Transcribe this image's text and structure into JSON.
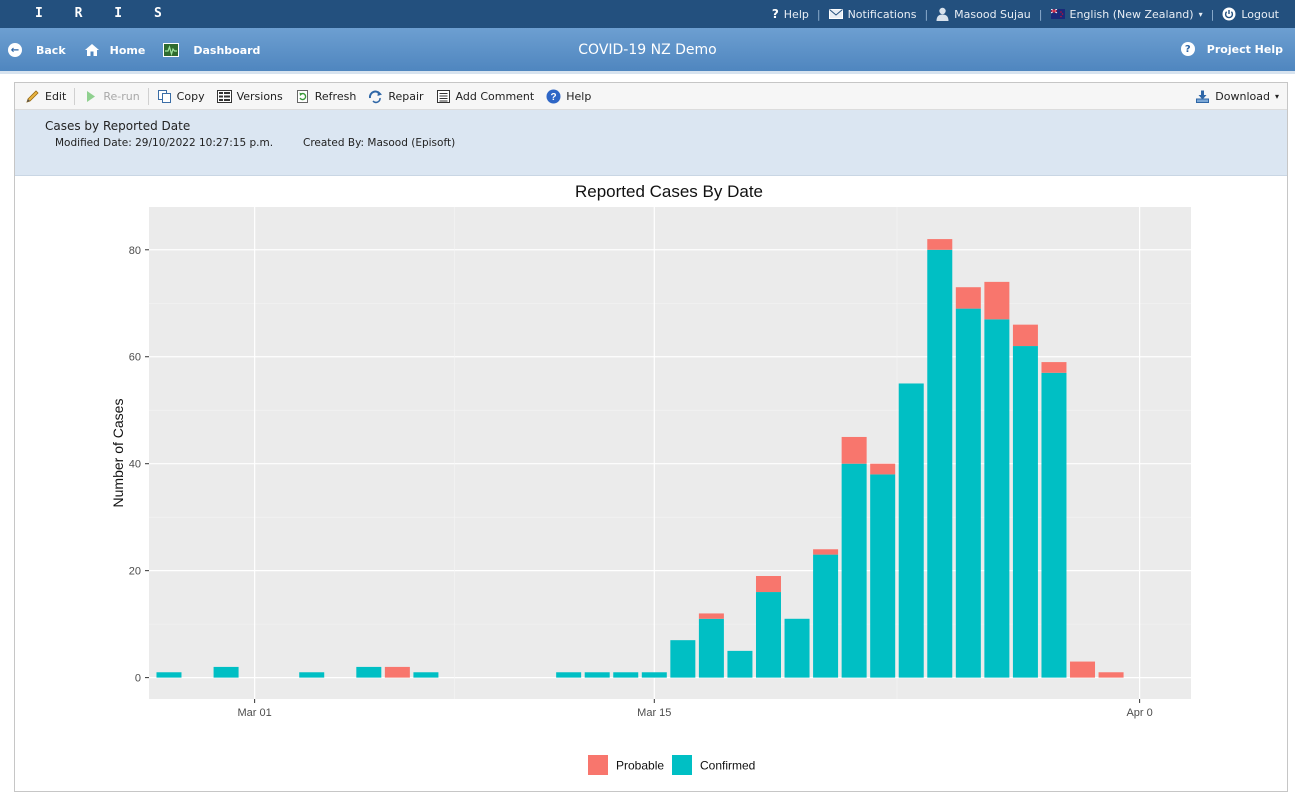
{
  "topbar": {
    "brand": "I R I S",
    "help": "Help",
    "notifications": "Notifications",
    "user": "Masood Sujau",
    "language": "English (New Zealand)",
    "logout": "Logout"
  },
  "navbar": {
    "back": "Back",
    "home": "Home",
    "dashboard": "Dashboard",
    "title": "COVID-19 NZ Demo",
    "project_help": "Project Help"
  },
  "toolbar": {
    "edit": "Edit",
    "rerun": "Re-run",
    "copy": "Copy",
    "versions": "Versions",
    "refresh": "Refresh",
    "repair": "Repair",
    "add_comment": "Add Comment",
    "help": "Help",
    "download": "Download"
  },
  "report": {
    "title": "Cases by Reported Date",
    "modified": "Modified Date: 29/10/2022 10:27:15 p.m.",
    "created": "Created By: Masood (Episoft)"
  },
  "colors": {
    "confirmed": "#00bfc4",
    "probable": "#f8766d",
    "panel_bg": "#ebebeb"
  },
  "chart_data": {
    "type": "bar",
    "stacked": true,
    "title": "Reported Cases By Date",
    "xlabel": "",
    "ylabel": "Number of Cases",
    "ylim": [
      0,
      88
    ],
    "yticks": [
      0,
      20,
      40,
      60,
      80
    ],
    "xtick_labels": [
      "Mar 01",
      "Mar 15",
      "Apr 0"
    ],
    "xtick_days": [
      29,
      43,
      60
    ],
    "legend_position": "bottom",
    "series": [
      {
        "name": "Probable",
        "color": "#f8766d",
        "points": [
          [
            33,
            0
          ],
          [
            34,
            2
          ],
          [
            35,
            0
          ],
          [
            40,
            0
          ],
          [
            41,
            0
          ],
          [
            42,
            0
          ],
          [
            43,
            0
          ],
          [
            44,
            0
          ],
          [
            45,
            1
          ],
          [
            46,
            0
          ],
          [
            47,
            3
          ],
          [
            48,
            0
          ],
          [
            49,
            1
          ],
          [
            50,
            5
          ],
          [
            51,
            2
          ],
          [
            52,
            0
          ],
          [
            53,
            2
          ],
          [
            54,
            4
          ],
          [
            55,
            7
          ],
          [
            56,
            4
          ],
          [
            57,
            2
          ],
          [
            58,
            3
          ],
          [
            59,
            1
          ]
        ]
      },
      {
        "name": "Confirmed",
        "color": "#00bfc4",
        "points": [
          [
            26,
            1
          ],
          [
            28,
            2
          ],
          [
            31,
            1
          ],
          [
            33,
            2
          ],
          [
            34,
            0
          ],
          [
            35,
            1
          ],
          [
            40,
            1
          ],
          [
            41,
            1
          ],
          [
            42,
            1
          ],
          [
            43,
            1
          ],
          [
            44,
            7
          ],
          [
            45,
            11
          ],
          [
            46,
            5
          ],
          [
            47,
            16
          ],
          [
            48,
            11
          ],
          [
            49,
            23
          ],
          [
            50,
            40
          ],
          [
            51,
            38
          ],
          [
            52,
            55
          ],
          [
            53,
            80
          ],
          [
            54,
            69
          ],
          [
            55,
            67
          ],
          [
            56,
            62
          ],
          [
            57,
            57
          ],
          [
            59,
            0
          ]
        ]
      }
    ]
  }
}
